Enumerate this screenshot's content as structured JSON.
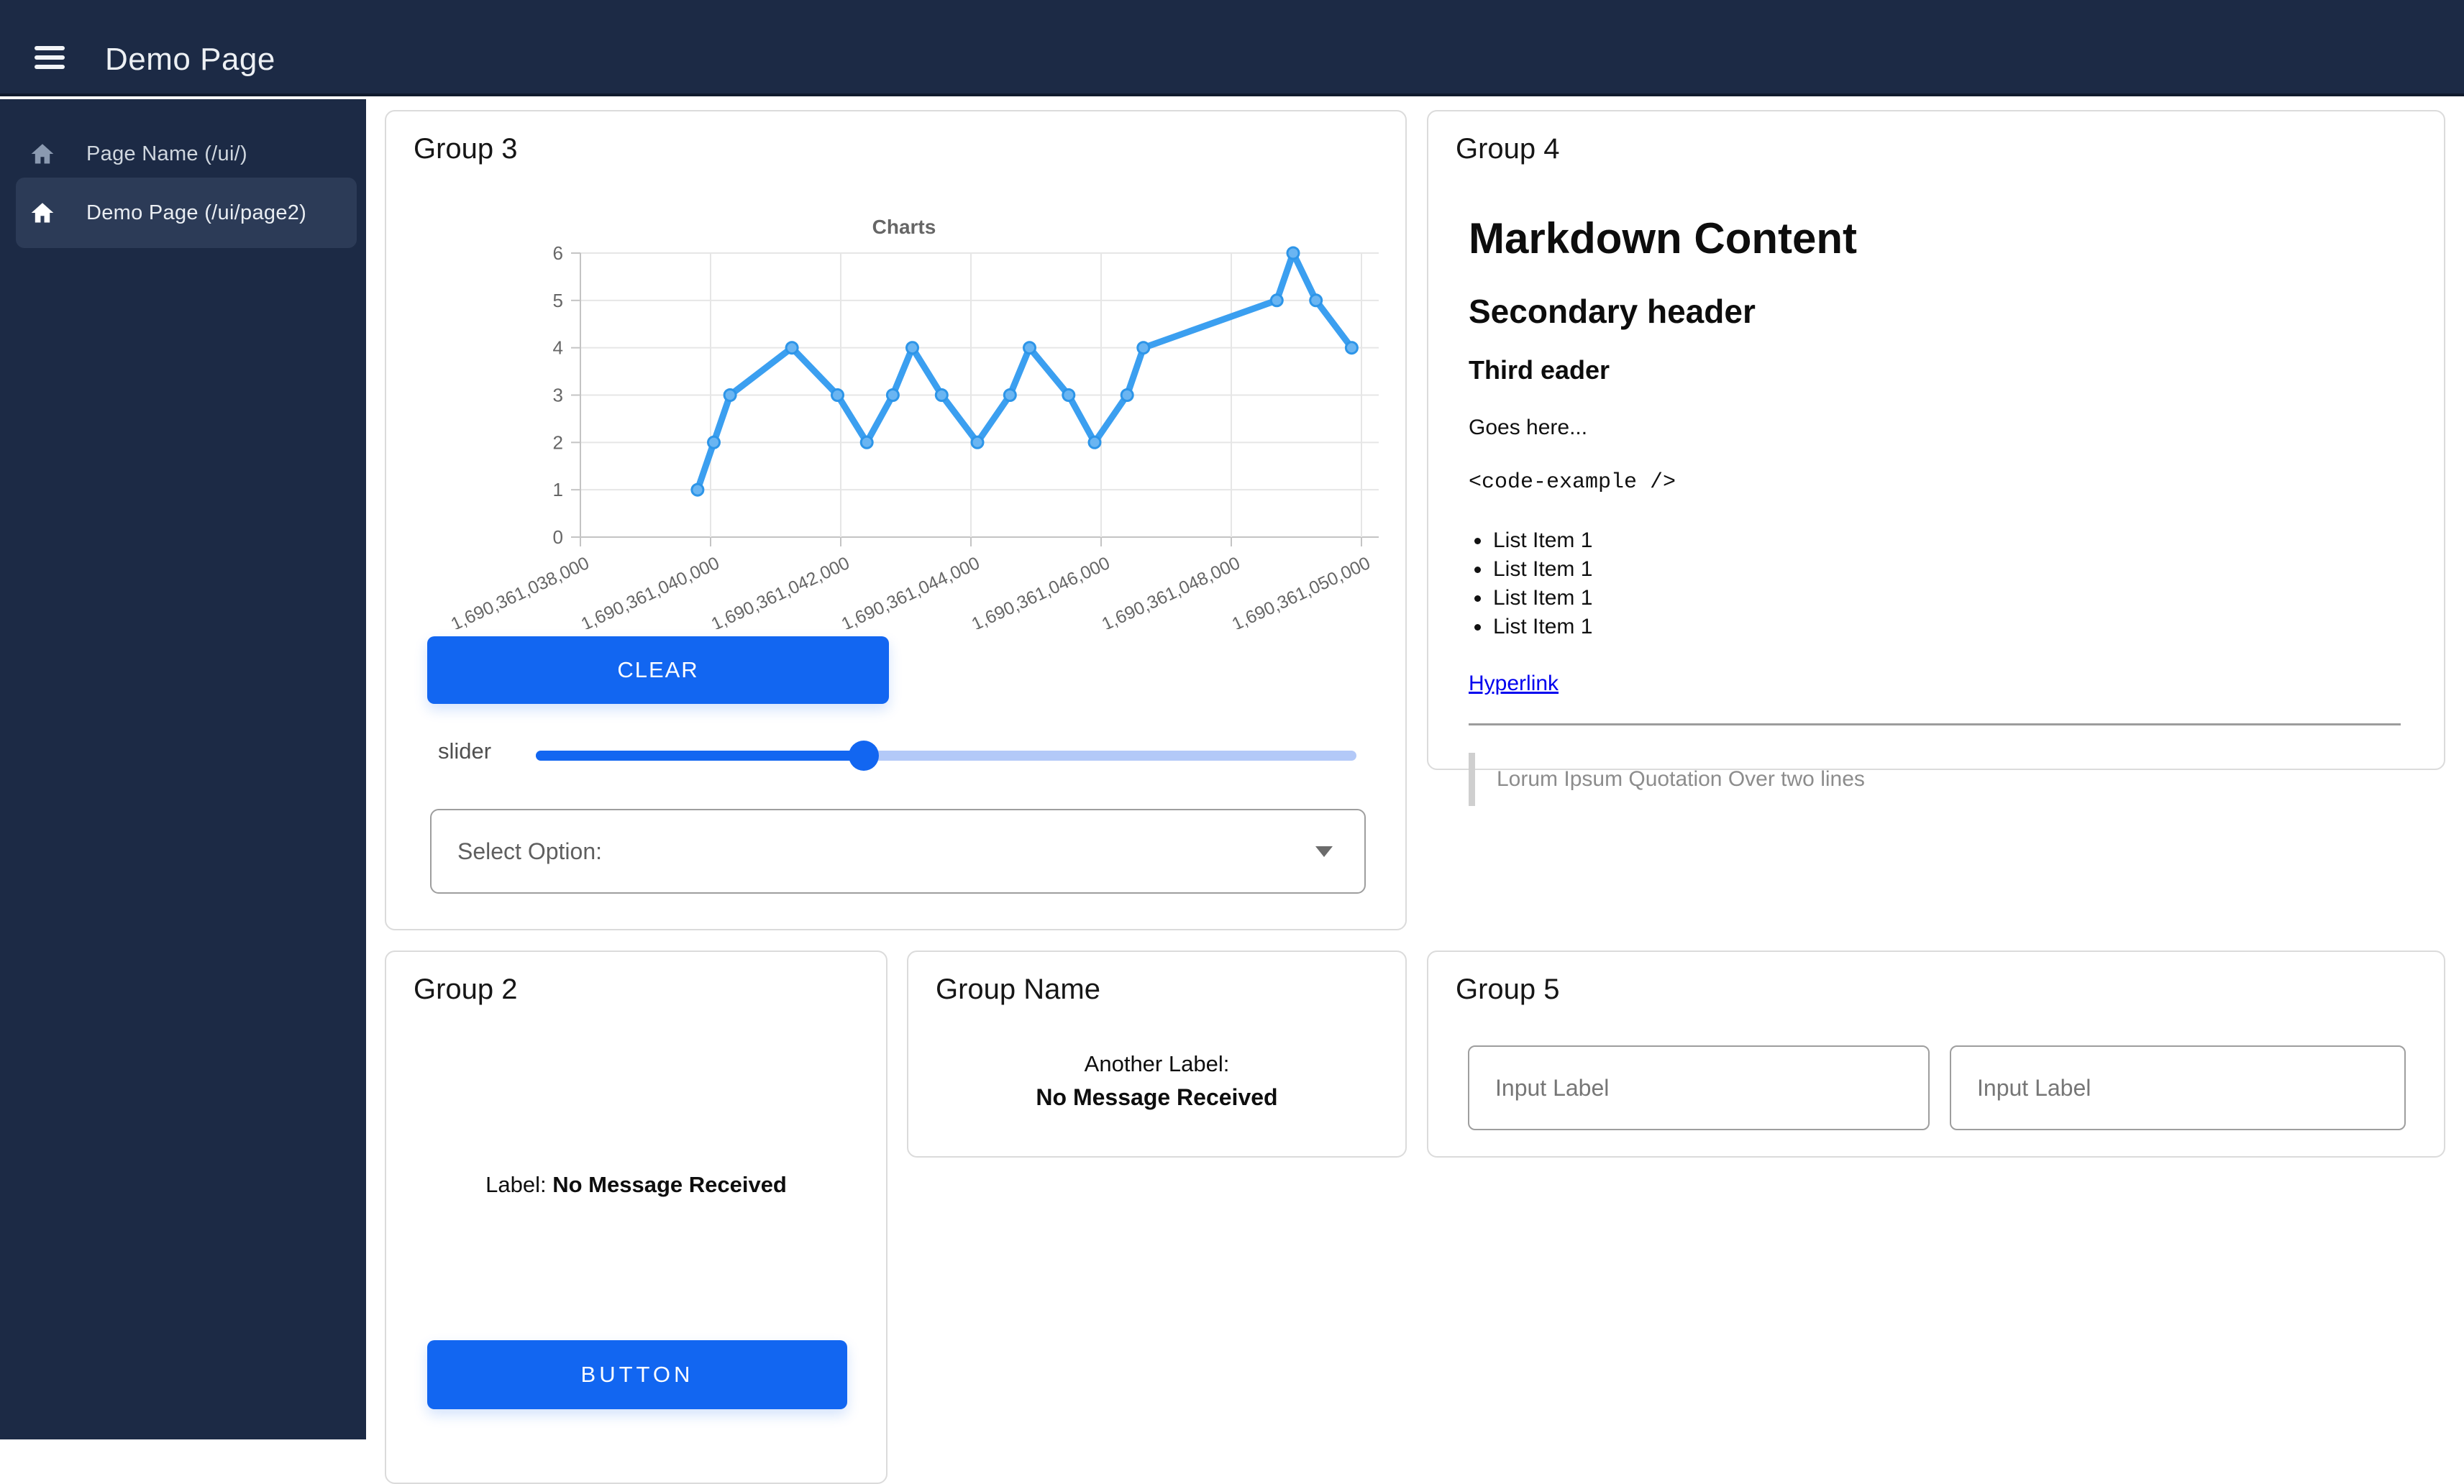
{
  "header": {
    "title": "Demo Page"
  },
  "sidebar": {
    "items": [
      {
        "label": "Page Name (/ui/)",
        "active": false
      },
      {
        "label": "Demo Page (/ui/page2)",
        "active": true
      }
    ]
  },
  "groups": {
    "group3": {
      "title": "Group 3",
      "clear_button": "CLEAR",
      "slider_label": "slider",
      "slider_percent": 40,
      "select_label": "Select Option:"
    },
    "group4": {
      "title": "Group 4",
      "h1": "Markdown Content",
      "h2": "Secondary header",
      "h3": "Third eader",
      "paragraph": "Goes here...",
      "code": "<code-example />",
      "list_items": [
        "List Item 1",
        "List Item 1",
        "List Item 1",
        "List Item 1"
      ],
      "link": "Hyperlink",
      "quote": "Lorum Ipsum Quotation Over two lines"
    },
    "group2": {
      "title": "Group 2",
      "label_prefix": "Label:",
      "label_value": "No Message Received",
      "button": "BUTTON"
    },
    "group_name": {
      "title": "Group Name",
      "label_prefix": "Another Label:",
      "label_value": "No Message Received"
    },
    "group5": {
      "title": "Group 5",
      "input1_placeholder": "Input Label",
      "input2_placeholder": "Input Label"
    }
  },
  "chart_data": {
    "type": "line",
    "title": "Charts",
    "x": [
      1690361039800,
      1690361040050,
      1690361040300,
      1690361041250,
      1690361041950,
      1690361042400,
      1690361042800,
      1690361043100,
      1690361043550,
      1690361044100,
      1690361044600,
      1690361044900,
      1690361045500,
      1690361045900,
      1690361046400,
      1690361046650,
      1690361048700,
      1690361048950,
      1690361049300,
      1690361049850
    ],
    "values": [
      1,
      2,
      3,
      4,
      3,
      2,
      3,
      4,
      3,
      2,
      3,
      4,
      3,
      2,
      3,
      4,
      5,
      6,
      5,
      4
    ],
    "x_tick_values": [
      1690361038000,
      1690361040000,
      1690361042000,
      1690361044000,
      1690361046000,
      1690361048000,
      1690361050000
    ],
    "x_tick_labels": [
      "1,690,361,038,000",
      "1,690,361,040,000",
      "1,690,361,042,000",
      "1,690,361,044,000",
      "1,690,361,046,000",
      "1,690,361,048,000",
      "1,690,361,050,000"
    ],
    "yticks": [
      0,
      1,
      2,
      3,
      4,
      5,
      6
    ],
    "ylim": [
      0,
      6
    ],
    "xlabel": "",
    "ylabel": "",
    "grid": true,
    "legend": false,
    "line_color": "#3b9ff0",
    "point_fill": "#6ab5f2",
    "point_stroke": "#2d95e8"
  },
  "colors": {
    "navy": "#1C2A45",
    "sidebar_active": "#2C3B57",
    "primary_blue": "#1266F1",
    "slider_rest": "#B3C9F8",
    "link_blue": "#0000EE",
    "card_border": "#DBDBDB",
    "axis_text": "#666666"
  }
}
